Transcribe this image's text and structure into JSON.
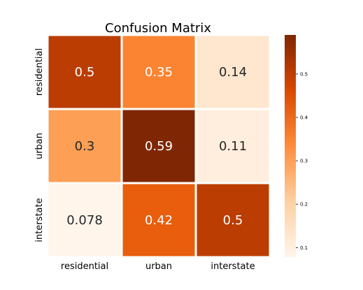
{
  "chart_data": {
    "type": "heatmap",
    "title": "Confusion Matrix",
    "row_labels": [
      "residential",
      "urban",
      "interstate"
    ],
    "col_labels": [
      "residential",
      "urban",
      "interstate"
    ],
    "values": [
      [
        0.5,
        0.35,
        0.14
      ],
      [
        0.3,
        0.59,
        0.11
      ],
      [
        0.078,
        0.42,
        0.5
      ]
    ],
    "value_labels": [
      [
        "0.5",
        "0.35",
        "0.14"
      ],
      [
        "0.3",
        "0.59",
        "0.11"
      ],
      [
        "0.078",
        "0.42",
        "0.5"
      ]
    ],
    "colormap": "Oranges",
    "vmin": 0.078,
    "vmax": 0.59,
    "colorbar_ticks": [
      "0.1",
      "0.2",
      "0.3",
      "0.4",
      "0.5"
    ],
    "grid": false
  }
}
